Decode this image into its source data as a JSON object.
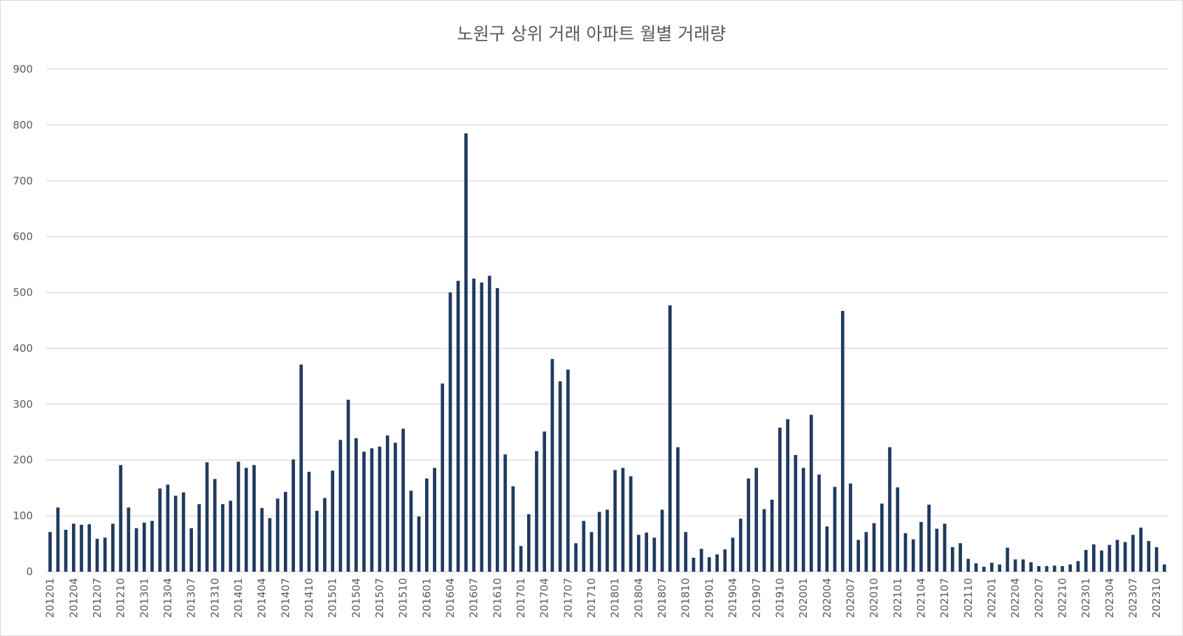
{
  "chart_data": {
    "type": "bar",
    "title": "노원구 상위 거래 아파트 월별 거래량",
    "ylim": [
      0,
      900
    ],
    "y_ticks": [
      0,
      100,
      200,
      300,
      400,
      500,
      600,
      700,
      800,
      900
    ],
    "grid": true,
    "bar_color": "#203a5f",
    "grid_color": "#d9d9d9",
    "categories": [
      "201201",
      "201202",
      "201203",
      "201204",
      "201205",
      "201206",
      "201207",
      "201208",
      "201209",
      "201210",
      "201211",
      "201212",
      "201301",
      "201302",
      "201303",
      "201304",
      "201305",
      "201306",
      "201307",
      "201308",
      "201309",
      "201310",
      "201311",
      "201312",
      "201401",
      "201402",
      "201403",
      "201404",
      "201405",
      "201406",
      "201407",
      "201408",
      "201409",
      "201410",
      "201411",
      "201412",
      "201501",
      "201502",
      "201503",
      "201504",
      "201505",
      "201506",
      "201507",
      "201508",
      "201509",
      "201510",
      "201511",
      "201512",
      "201601",
      "201602",
      "201603",
      "201604",
      "201605",
      "201606",
      "201607",
      "201608",
      "201609",
      "201610",
      "201611",
      "201612",
      "201701",
      "201702",
      "201703",
      "201704",
      "201705",
      "201706",
      "201707",
      "201708",
      "201709",
      "201710",
      "201711",
      "201712",
      "201801",
      "201802",
      "201803",
      "201804",
      "201805",
      "201806",
      "201807",
      "201808",
      "201809",
      "201810",
      "201811",
      "201812",
      "201901",
      "201902",
      "201903",
      "201904",
      "201905",
      "201906",
      "201907",
      "201908",
      "201909",
      "201910",
      "201911",
      "201912",
      "202001",
      "202002",
      "202003",
      "202004",
      "202005",
      "202006",
      "202007",
      "202008",
      "202009",
      "202010",
      "202011",
      "202012",
      "202101",
      "202102",
      "202103",
      "202104",
      "202105",
      "202106",
      "202107",
      "202108",
      "202109",
      "202110",
      "202111",
      "202112",
      "202201",
      "202202",
      "202203",
      "202204",
      "202205",
      "202206",
      "202207",
      "202208",
      "202209",
      "202210",
      "202211",
      "202212",
      "202301",
      "202302",
      "202303",
      "202304",
      "202305",
      "202306",
      "202307",
      "202308",
      "202309",
      "202310",
      "202311"
    ],
    "values": [
      71,
      115,
      75,
      86,
      84,
      85,
      59,
      61,
      86,
      191,
      115,
      78,
      88,
      91,
      149,
      156,
      136,
      142,
      78,
      121,
      196,
      166,
      121,
      127,
      197,
      186,
      191,
      114,
      96,
      131,
      143,
      201,
      371,
      179,
      109,
      132,
      181,
      236,
      308,
      239,
      215,
      221,
      224,
      244,
      231,
      256,
      145,
      99,
      167,
      186,
      337,
      500,
      521,
      785,
      525,
      518,
      530,
      508,
      210,
      153,
      46,
      103,
      216,
      251,
      381,
      341,
      362,
      51,
      91,
      71,
      107,
      111,
      182,
      186,
      171,
      66,
      70,
      61,
      111,
      477,
      223,
      71,
      25,
      41,
      26,
      31,
      40,
      61,
      95,
      167,
      186,
      112,
      129,
      258,
      273,
      209,
      186,
      281,
      174,
      81,
      152,
      467,
      158,
      57,
      71,
      87,
      122,
      223,
      151,
      69,
      58,
      89,
      120,
      77,
      86,
      44,
      51,
      23,
      15,
      9,
      16,
      13,
      43,
      22,
      22,
      17,
      10,
      10,
      11,
      10,
      13,
      19,
      39,
      49,
      38,
      48,
      57,
      53,
      66,
      79,
      55,
      44,
      13
    ],
    "x_tick_labels": [
      "201201",
      "201204",
      "201207",
      "201210",
      "201301",
      "201304",
      "201307",
      "201310",
      "201401",
      "201404",
      "201407",
      "201410",
      "201501",
      "201504",
      "201507",
      "201510",
      "201601",
      "201604",
      "201607",
      "201610",
      "201701",
      "201704",
      "201707",
      "201710",
      "201801",
      "201804",
      "201807",
      "201810",
      "201901",
      "201904",
      "201907",
      "201910",
      "202001",
      "202004",
      "202007",
      "202010",
      "202101",
      "202104",
      "202107",
      "202110",
      "202201",
      "202204",
      "202207",
      "202210",
      "202301",
      "202304",
      "202307",
      "202310"
    ]
  }
}
